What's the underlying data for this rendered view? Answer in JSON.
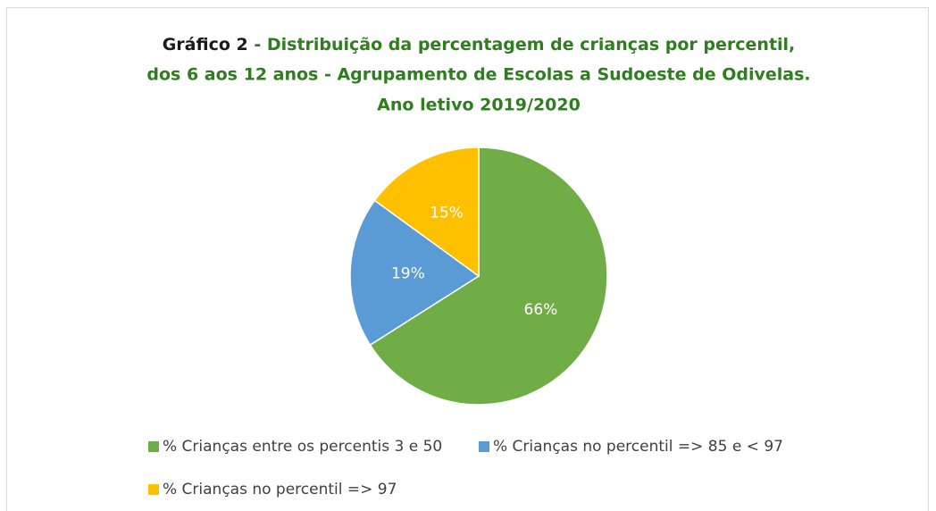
{
  "chart_data": {
    "type": "pie",
    "title": [
      "Gráfico 2",
      " - Distribuição da percentagem de crianças por percentil,",
      "dos 6 aos 12 anos - Agrupamento de Escolas a Sudoeste de Odivelas.",
      "Ano letivo 2019/2020"
    ],
    "categories": [
      "% Crianças entre os percentis 3 e 50",
      "% Crianças no percentil => 85 e < 97",
      "% Crianças no percentil => 97"
    ],
    "values": [
      66,
      19,
      15
    ],
    "value_labels": [
      "66%",
      "19%",
      "15%"
    ],
    "colors": [
      "#70ad47",
      "#5b9bd5",
      "#ffc000"
    ],
    "legend": "bottom"
  }
}
